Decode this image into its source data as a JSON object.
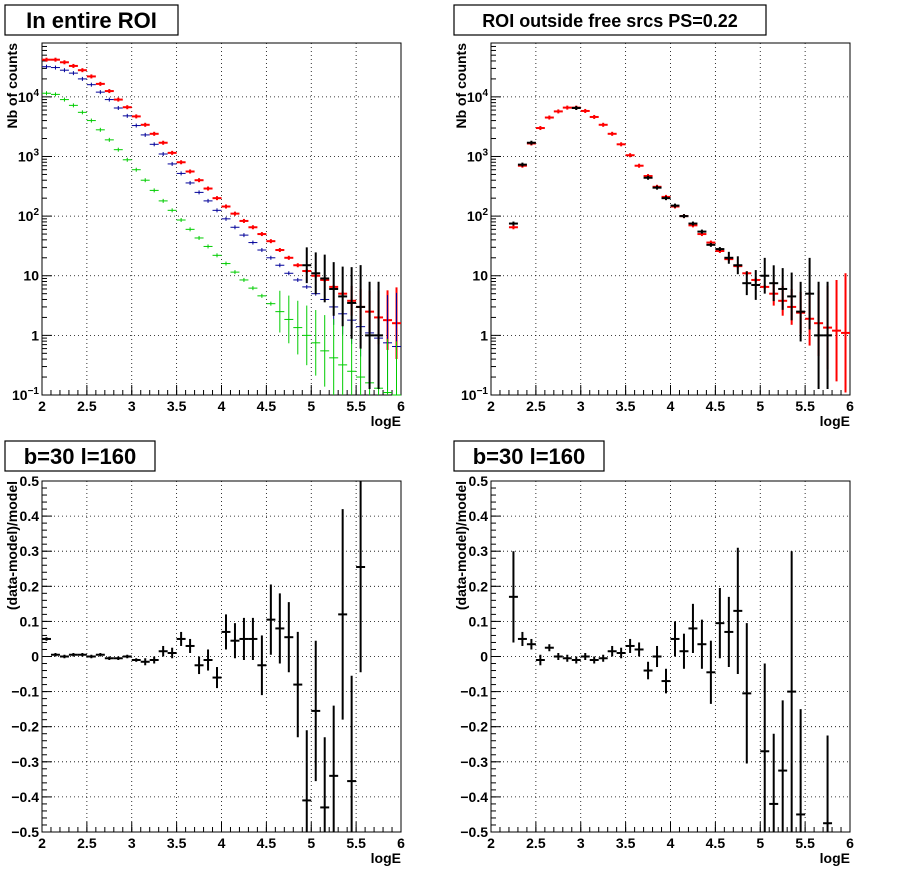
{
  "chart_data": [
    {
      "type": "scatter",
      "title": "In entire ROI",
      "xlabel": "logE",
      "ylabel": "Nb of counts",
      "xlim": [
        2,
        6
      ],
      "ylim": [
        0.1,
        80000
      ],
      "yscale": "log",
      "xticks": [
        "2",
        "2.5",
        "3",
        "3.5",
        "4",
        "4.5",
        "5",
        "5.5",
        "6"
      ],
      "yticks": [
        "10^-1",
        "1",
        "10",
        "10^2",
        "10^3",
        "10^4"
      ],
      "grid": true,
      "series": [
        {
          "color": "#ff0000",
          "x": [
            2.05,
            2.15,
            2.25,
            2.35,
            2.45,
            2.55,
            2.65,
            2.75,
            2.85,
            2.95,
            3.05,
            3.15,
            3.25,
            3.35,
            3.45,
            3.55,
            3.65,
            3.75,
            3.85,
            3.95,
            4.05,
            4.15,
            4.25,
            4.35,
            4.45,
            4.55,
            4.65,
            4.75,
            4.85,
            4.95,
            5.05,
            5.15,
            5.25,
            5.35,
            5.45,
            5.55,
            5.65,
            5.75,
            5.85,
            5.95
          ],
          "y": [
            42000,
            42000,
            38000,
            33000,
            28000,
            22000,
            16500,
            12500,
            9000,
            6700,
            4700,
            3400,
            2400,
            1700,
            1150,
            800,
            560,
            400,
            290,
            200,
            145,
            110,
            83,
            65,
            50,
            38,
            27,
            20,
            15,
            12,
            10,
            8.5,
            6.5,
            5,
            3.8,
            3,
            2.5,
            2,
            1.8,
            1.6
          ],
          "err": [
            0,
            0,
            0,
            0,
            0,
            0,
            0,
            0,
            0,
            0,
            0,
            0,
            0,
            0,
            0,
            0,
            0,
            0,
            0,
            0,
            0,
            0,
            0,
            0,
            0,
            0,
            0,
            0,
            0,
            0,
            0,
            0,
            0,
            0,
            0.25,
            0.3,
            0.35,
            0.45,
            0.5,
            0.6
          ]
        },
        {
          "color": "#000099",
          "x": [
            2.05,
            2.15,
            2.25,
            2.35,
            2.45,
            2.55,
            2.65,
            2.75,
            2.85,
            2.95,
            3.05,
            3.15,
            3.25,
            3.35,
            3.45,
            3.55,
            3.65,
            3.75,
            3.85,
            3.95,
            4.05,
            4.15,
            4.25,
            4.35,
            4.45,
            4.55,
            4.65,
            4.75,
            4.85,
            4.95,
            5.05,
            5.15,
            5.25,
            5.35,
            5.45,
            5.55,
            5.65,
            5.75,
            5.85,
            5.95
          ],
          "y": [
            32000,
            31000,
            28000,
            25000,
            20000,
            16000,
            12000,
            9000,
            6500,
            4800,
            3300,
            2300,
            1600,
            1100,
            750,
            520,
            360,
            250,
            180,
            125,
            90,
            65,
            48,
            36,
            27,
            20,
            15,
            11,
            8.5,
            6.5,
            5,
            4,
            3,
            2.3,
            1.8,
            1.4,
            1.1,
            0.9,
            0.75,
            0.65
          ],
          "err": [
            0,
            0,
            0,
            0,
            0,
            0,
            0,
            0,
            0,
            0,
            0,
            0,
            0,
            0,
            0,
            0,
            0,
            0,
            0,
            0,
            0,
            0,
            0,
            0,
            0,
            0,
            0,
            0,
            0,
            0,
            0,
            0,
            0.3,
            0.35,
            0.4,
            0.5,
            0.6,
            0.7,
            0.8,
            0.9
          ]
        },
        {
          "color": "#00cc00",
          "x": [
            2.05,
            2.15,
            2.25,
            2.35,
            2.45,
            2.55,
            2.65,
            2.75,
            2.85,
            2.95,
            3.05,
            3.15,
            3.25,
            3.35,
            3.45,
            3.55,
            3.65,
            3.75,
            3.85,
            3.95,
            4.05,
            4.15,
            4.25,
            4.35,
            4.45,
            4.55,
            4.65,
            4.75,
            4.85,
            4.95,
            5.05,
            5.15,
            5.25,
            5.35,
            5.45,
            5.55,
            5.65,
            5.75,
            5.85,
            5.95
          ],
          "y": [
            11500,
            11000,
            9000,
            7200,
            5500,
            4000,
            2800,
            1900,
            1300,
            880,
            600,
            400,
            270,
            180,
            125,
            86,
            60,
            43,
            31,
            22,
            16,
            11.5,
            8.5,
            6.2,
            4.6,
            3.4,
            2.5,
            1.85,
            1.35,
            1.0,
            0.75,
            0.55,
            0.42,
            0.32,
            0.25,
            0.2,
            0.16,
            0.13,
            0.11,
            0.1
          ],
          "err": [
            0,
            0,
            0,
            0,
            0,
            0,
            0,
            0,
            0,
            0,
            0,
            0,
            0,
            0,
            0,
            0,
            0,
            0,
            0,
            0,
            0,
            0,
            0,
            0,
            0,
            0,
            0.35,
            0.4,
            0.45,
            0.5,
            0.55,
            0.6,
            0.65,
            0.7,
            0.75,
            0.8,
            0.85,
            0.9,
            0.9,
            0.9
          ]
        },
        {
          "color": "#000000",
          "x": [
            4.95,
            5.05,
            5.15,
            5.25,
            5.35,
            5.45,
            5.55,
            5.65,
            5.75
          ],
          "y": [
            15,
            11,
            9,
            6,
            4.5,
            3.5,
            3,
            1,
            1
          ],
          "err": [
            0.3,
            0.35,
            0.4,
            0.45,
            0.5,
            0.6,
            0.7,
            0.9,
            0.9
          ]
        }
      ]
    },
    {
      "type": "scatter",
      "title": "ROI outside free srcs PS=0.22",
      "xlabel": "logE",
      "ylabel": "Nb of counts",
      "xlim": [
        2,
        6
      ],
      "ylim": [
        0.1,
        80000
      ],
      "yscale": "log",
      "xticks": [
        "2",
        "2.5",
        "3",
        "3.5",
        "4",
        "4.5",
        "5",
        "5.5",
        "6"
      ],
      "yticks": [
        "10^-1",
        "1",
        "10",
        "10^2",
        "10^3",
        "10^4"
      ],
      "grid": true,
      "series": [
        {
          "color": "#ff0000",
          "x": [
            2.25,
            2.35,
            2.45,
            2.55,
            2.65,
            2.75,
            2.85,
            2.95,
            3.05,
            3.15,
            3.25,
            3.35,
            3.45,
            3.55,
            3.65,
            3.75,
            3.85,
            3.95,
            4.05,
            4.15,
            4.25,
            4.35,
            4.45,
            4.55,
            4.65,
            4.75,
            4.85,
            4.95,
            5.05,
            5.15,
            5.25,
            5.35,
            5.45,
            5.55,
            5.65,
            5.75,
            5.85,
            5.95
          ],
          "y": [
            65,
            700,
            1650,
            3000,
            4500,
            5700,
            6600,
            6600,
            5800,
            4600,
            3400,
            2400,
            1600,
            1050,
            700,
            470,
            310,
            210,
            145,
            100,
            70,
            50,
            36,
            26,
            19,
            14.5,
            11,
            8.5,
            6.5,
            5,
            3.8,
            3,
            2.4,
            1.9,
            1.6,
            1.35,
            1.2,
            1.1
          ],
          "err": [
            0,
            0,
            0,
            0,
            0,
            0,
            0,
            0,
            0,
            0,
            0,
            0,
            0,
            0,
            0,
            0,
            0,
            0,
            0,
            0,
            0,
            0,
            0,
            0,
            0,
            0,
            0,
            0,
            0,
            0.2,
            0.25,
            0.3,
            0.35,
            0.45,
            0.55,
            0.7,
            0.85,
            1.0
          ]
        },
        {
          "color": "#000000",
          "x": [
            2.25,
            2.35,
            2.45,
            2.95,
            3.75,
            3.85,
            3.95,
            4.05,
            4.15,
            4.25,
            4.35,
            4.45,
            4.55,
            4.65,
            4.75,
            4.85,
            4.95,
            5.05,
            5.15,
            5.25,
            5.35,
            5.45,
            5.55,
            5.65,
            5.75
          ],
          "y": [
            75,
            730,
            1700,
            6500,
            440,
            300,
            200,
            150,
            100,
            75,
            55,
            33,
            28,
            20,
            15,
            7.5,
            7,
            10,
            7.5,
            6,
            4.5,
            2.5,
            5,
            1,
            1
          ],
          "err": [
            0,
            0,
            0,
            0,
            0,
            0,
            0,
            0,
            0,
            0,
            0,
            0,
            0,
            0.1,
            0.15,
            0.2,
            0.25,
            0.3,
            0.3,
            0.35,
            0.4,
            0.5,
            0.6,
            0.9,
            0.9
          ]
        }
      ]
    },
    {
      "type": "scatter",
      "title": "b=30 l=160",
      "xlabel": "logE",
      "ylabel": "(data-model)/model",
      "xlim": [
        2,
        6
      ],
      "ylim": [
        -0.5,
        0.5
      ],
      "yscale": "linear",
      "xticks": [
        "2",
        "2.5",
        "3",
        "3.5",
        "4",
        "4.5",
        "5",
        "5.5",
        "6"
      ],
      "yticks": [
        "-0.5",
        "-0.4",
        "-0.3",
        "-0.2",
        "-0.1",
        "0",
        "0.1",
        "0.2",
        "0.3",
        "0.4",
        "0.5"
      ],
      "grid": true,
      "series": [
        {
          "color": "#000000",
          "x": [
            2.05,
            2.15,
            2.25,
            2.35,
            2.45,
            2.55,
            2.65,
            2.75,
            2.85,
            2.95,
            3.05,
            3.15,
            3.25,
            3.35,
            3.45,
            3.55,
            3.65,
            3.75,
            3.85,
            3.95,
            4.05,
            4.15,
            4.25,
            4.35,
            4.45,
            4.55,
            4.65,
            4.75,
            4.85,
            4.95,
            5.05,
            5.15,
            5.25,
            5.35,
            5.45,
            5.55
          ],
          "y": [
            0.05,
            0.005,
            0.0,
            0.005,
            0.005,
            0.0,
            0.005,
            -0.005,
            -0.005,
            0.0,
            -0.01,
            -0.015,
            -0.01,
            0.015,
            0.01,
            0.05,
            0.03,
            -0.025,
            -0.01,
            -0.06,
            0.07,
            0.045,
            0.05,
            0.05,
            -0.025,
            0.105,
            0.08,
            0.055,
            -0.08,
            -0.41,
            -0.155,
            -0.43,
            -0.34,
            0.12,
            -0.355,
            0.255
          ],
          "err": [
            0.005,
            0.005,
            0.005,
            0.005,
            0.005,
            0.005,
            0.005,
            0.005,
            0.005,
            0.005,
            0.005,
            0.01,
            0.01,
            0.015,
            0.015,
            0.02,
            0.02,
            0.025,
            0.03,
            0.03,
            0.05,
            0.05,
            0.06,
            0.06,
            0.085,
            0.1,
            0.1,
            0.1,
            0.15,
            0.2,
            0.2,
            0.2,
            0.2,
            0.3,
            0.3,
            0.3
          ]
        }
      ]
    },
    {
      "type": "scatter",
      "title": "b=30 l=160",
      "xlabel": "logE",
      "ylabel": "(data-model)/model",
      "xlim": [
        2,
        6
      ],
      "ylim": [
        -0.5,
        0.5
      ],
      "yscale": "linear",
      "xticks": [
        "2",
        "2.5",
        "3",
        "3.5",
        "4",
        "4.5",
        "5",
        "5.5",
        "6"
      ],
      "yticks": [
        "-0.5",
        "-0.4",
        "-0.3",
        "-0.2",
        "-0.1",
        "0",
        "0.1",
        "0.2",
        "0.3",
        "0.4",
        "0.5"
      ],
      "grid": true,
      "series": [
        {
          "color": "#000000",
          "x": [
            2.25,
            2.35,
            2.45,
            2.55,
            2.65,
            2.75,
            2.85,
            2.95,
            3.05,
            3.15,
            3.25,
            3.35,
            3.45,
            3.55,
            3.65,
            3.75,
            3.85,
            3.95,
            4.05,
            4.15,
            4.25,
            4.35,
            4.45,
            4.55,
            4.65,
            4.75,
            4.85,
            5.05,
            5.15,
            5.25,
            5.35,
            5.45,
            5.75
          ],
          "y": [
            0.17,
            0.05,
            0.035,
            -0.01,
            0.025,
            0.0,
            -0.005,
            -0.01,
            0.0,
            -0.01,
            -0.005,
            0.015,
            0.01,
            0.03,
            0.02,
            -0.04,
            0.0,
            -0.07,
            0.05,
            0.015,
            0.08,
            0.035,
            -0.045,
            0.095,
            0.07,
            0.13,
            -0.105,
            -0.27,
            -0.42,
            -0.325,
            -0.1,
            -0.45,
            -0.475
          ],
          "err": [
            0.13,
            0.02,
            0.015,
            0.015,
            0.01,
            0.01,
            0.01,
            0.01,
            0.01,
            0.01,
            0.01,
            0.015,
            0.015,
            0.02,
            0.02,
            0.025,
            0.03,
            0.035,
            0.05,
            0.05,
            0.07,
            0.07,
            0.09,
            0.1,
            0.1,
            0.18,
            0.2,
            0.25,
            0.2,
            0.2,
            0.4,
            0.3,
            0.25
          ]
        }
      ]
    }
  ]
}
